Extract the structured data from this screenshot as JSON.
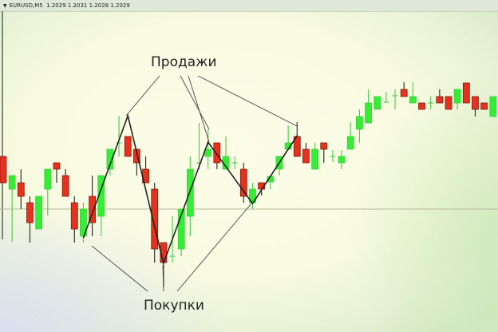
{
  "header": {
    "menu_icon": "triangle-down-icon",
    "symbol": "EURUSD,M5",
    "quote": "1.2029 1.2031 1.2028 1.2029"
  },
  "annotations": {
    "sell": "Продажи",
    "buy": "Покупки"
  },
  "colors": {
    "bull": "#33ee33",
    "bear": "#e8301c",
    "wick": "#333333",
    "level": "#b8b8a0"
  },
  "chart_data": {
    "type": "candlestick",
    "title": "",
    "xlabel": "",
    "ylabel": "",
    "ylim": [
      30,
      310
    ],
    "grid": false,
    "horizontal_level": 138,
    "candles": [
      [
        204,
        204,
        171,
        171
      ],
      [
        163,
        180,
        97,
        180
      ],
      [
        171,
        188,
        138,
        154
      ],
      [
        146,
        154,
        96,
        121
      ],
      [
        113,
        154,
        113,
        154
      ],
      [
        163,
        188,
        130,
        188
      ],
      [
        196,
        196,
        171,
        188
      ],
      [
        180,
        188,
        154,
        154
      ],
      [
        146,
        154,
        96,
        113
      ],
      [
        104,
        146,
        96,
        138
      ],
      [
        154,
        180,
        104,
        121
      ],
      [
        129,
        180,
        104,
        180
      ],
      [
        188,
        213,
        180,
        213
      ],
      [
        221,
        255,
        204,
        221
      ],
      [
        229,
        229,
        204,
        204
      ],
      [
        213,
        213,
        180,
        196
      ],
      [
        188,
        204,
        171,
        171
      ],
      [
        163,
        171,
        71,
        88
      ],
      [
        96,
        96,
        40,
        71
      ],
      [
        79,
        129,
        71,
        79
      ],
      [
        88,
        138,
        79,
        138
      ],
      [
        129,
        204,
        104,
        188
      ],
      [
        196,
        246,
        188,
        196
      ],
      [
        204,
        238,
        188,
        213
      ],
      [
        221,
        221,
        188,
        196
      ],
      [
        188,
        229,
        188,
        204
      ],
      [
        196,
        204,
        188,
        196
      ],
      [
        188,
        196,
        146,
        154
      ],
      [
        146,
        171,
        138,
        163
      ],
      [
        171,
        171,
        155,
        163
      ],
      [
        172,
        179,
        163,
        179
      ],
      [
        188,
        204,
        180,
        204
      ],
      [
        213,
        243,
        213,
        221
      ],
      [
        229,
        247,
        204,
        204
      ],
      [
        213,
        221,
        196,
        196
      ],
      [
        188,
        221,
        188,
        213
      ],
      [
        221,
        221,
        196,
        213
      ],
      [
        204,
        212,
        197,
        204
      ],
      [
        196,
        212,
        188,
        204
      ],
      [
        213,
        247,
        213,
        229
      ],
      [
        238,
        263,
        221,
        254
      ],
      [
        246,
        288,
        246,
        271
      ],
      [
        263,
        279,
        263,
        279
      ],
      [
        272,
        285,
        272,
        272
      ],
      [
        280,
        288,
        263,
        280
      ],
      [
        288,
        297,
        279,
        279
      ],
      [
        271,
        297,
        271,
        279
      ],
      [
        271,
        271,
        263,
        263
      ],
      [
        271,
        279,
        263,
        271
      ],
      [
        279,
        288,
        271,
        271
      ],
      [
        279,
        279,
        263,
        263
      ],
      [
        271,
        288,
        263,
        288
      ],
      [
        296,
        296,
        271,
        271
      ],
      [
        279,
        279,
        254,
        263
      ],
      [
        271,
        271,
        263,
        263
      ],
      [
        254,
        279,
        254,
        279
      ]
    ],
    "zigzag": [
      [
        10,
        102
      ],
      [
        15,
        255
      ],
      [
        19,
        70
      ],
      [
        24,
        222
      ],
      [
        29,
        145
      ],
      [
        34,
        230
      ]
    ]
  }
}
